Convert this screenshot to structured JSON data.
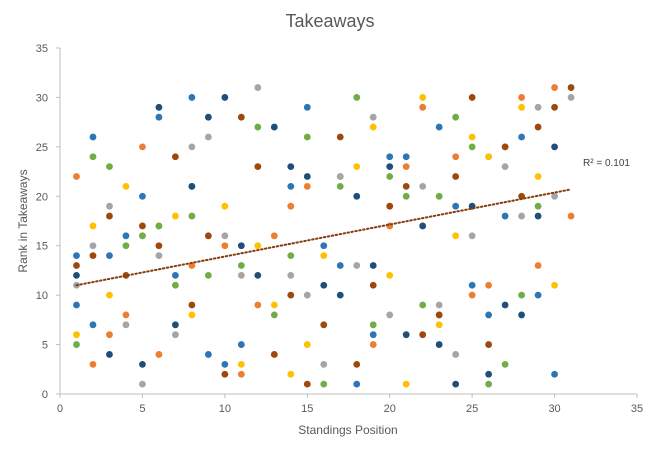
{
  "chart_data": {
    "type": "scatter",
    "title": "Takeaways",
    "xlabel": "Standings Position",
    "ylabel": "Rank in Takeaways",
    "xlim": [
      0,
      35
    ],
    "ylim": [
      0,
      35
    ],
    "xticks": [
      0,
      5,
      10,
      15,
      20,
      25,
      30,
      35
    ],
    "yticks": [
      0,
      5,
      10,
      15,
      20,
      25,
      30,
      35
    ],
    "grid": false,
    "legend": "none",
    "series": [
      {
        "color": "#2E75B6",
        "points": [
          [
            1,
            14
          ],
          [
            1,
            9
          ],
          [
            2,
            26
          ],
          [
            2,
            7
          ],
          [
            3,
            14
          ],
          [
            4,
            16
          ],
          [
            5,
            20
          ],
          [
            6,
            28
          ],
          [
            7,
            12
          ],
          [
            8,
            30
          ],
          [
            8,
            21
          ],
          [
            9,
            4
          ],
          [
            10,
            3
          ],
          [
            11,
            5
          ],
          [
            14,
            21
          ],
          [
            15,
            29
          ],
          [
            16,
            15
          ],
          [
            17,
            13
          ],
          [
            18,
            1
          ],
          [
            19,
            6
          ],
          [
            20,
            24
          ],
          [
            21,
            24
          ],
          [
            23,
            27
          ],
          [
            24,
            19
          ],
          [
            25,
            11
          ],
          [
            26,
            8
          ],
          [
            27,
            18
          ],
          [
            28,
            26
          ],
          [
            29,
            10
          ],
          [
            30,
            2
          ]
        ]
      },
      {
        "color": "#1F4E79",
        "points": [
          [
            1,
            12
          ],
          [
            3,
            4
          ],
          [
            5,
            3
          ],
          [
            6,
            29
          ],
          [
            7,
            7
          ],
          [
            8,
            21
          ],
          [
            9,
            28
          ],
          [
            10,
            30
          ],
          [
            11,
            15
          ],
          [
            12,
            12
          ],
          [
            13,
            27
          ],
          [
            14,
            23
          ],
          [
            15,
            22
          ],
          [
            16,
            11
          ],
          [
            17,
            10
          ],
          [
            18,
            20
          ],
          [
            19,
            13
          ],
          [
            20,
            23
          ],
          [
            21,
            6
          ],
          [
            22,
            17
          ],
          [
            23,
            5
          ],
          [
            24,
            1
          ],
          [
            25,
            19
          ],
          [
            26,
            2
          ],
          [
            27,
            9
          ],
          [
            28,
            8
          ],
          [
            29,
            18
          ],
          [
            30,
            25
          ]
        ]
      },
      {
        "color": "#ED7D31",
        "points": [
          [
            1,
            22
          ],
          [
            2,
            3
          ],
          [
            3,
            6
          ],
          [
            4,
            8
          ],
          [
            5,
            25
          ],
          [
            6,
            4
          ],
          [
            8,
            13
          ],
          [
            10,
            15
          ],
          [
            11,
            2
          ],
          [
            12,
            9
          ],
          [
            13,
            16
          ],
          [
            14,
            19
          ],
          [
            15,
            21
          ],
          [
            17,
            22
          ],
          [
            19,
            5
          ],
          [
            20,
            17
          ],
          [
            21,
            23
          ],
          [
            22,
            29
          ],
          [
            23,
            8
          ],
          [
            24,
            24
          ],
          [
            25,
            10
          ],
          [
            26,
            11
          ],
          [
            27,
            25
          ],
          [
            28,
            30
          ],
          [
            29,
            13
          ],
          [
            30,
            31
          ],
          [
            31,
            18
          ]
        ]
      },
      {
        "color": "#A5A5A5",
        "points": [
          [
            1,
            11
          ],
          [
            2,
            15
          ],
          [
            3,
            19
          ],
          [
            4,
            7
          ],
          [
            5,
            1
          ],
          [
            6,
            14
          ],
          [
            7,
            6
          ],
          [
            8,
            25
          ],
          [
            9,
            26
          ],
          [
            10,
            16
          ],
          [
            11,
            12
          ],
          [
            12,
            31
          ],
          [
            14,
            12
          ],
          [
            15,
            10
          ],
          [
            16,
            3
          ],
          [
            17,
            22
          ],
          [
            18,
            13
          ],
          [
            19,
            28
          ],
          [
            20,
            8
          ],
          [
            22,
            21
          ],
          [
            23,
            9
          ],
          [
            24,
            4
          ],
          [
            25,
            16
          ],
          [
            26,
            24
          ],
          [
            27,
            23
          ],
          [
            28,
            18
          ],
          [
            29,
            29
          ],
          [
            30,
            20
          ],
          [
            31,
            30
          ]
        ]
      },
      {
        "color": "#FFC000",
        "points": [
          [
            1,
            6
          ],
          [
            2,
            17
          ],
          [
            3,
            10
          ],
          [
            4,
            21
          ],
          [
            5,
            16
          ],
          [
            6,
            17
          ],
          [
            7,
            18
          ],
          [
            8,
            8
          ],
          [
            10,
            19
          ],
          [
            11,
            3
          ],
          [
            12,
            15
          ],
          [
            13,
            9
          ],
          [
            14,
            2
          ],
          [
            15,
            5
          ],
          [
            16,
            14
          ],
          [
            18,
            23
          ],
          [
            19,
            27
          ],
          [
            20,
            12
          ],
          [
            21,
            1
          ],
          [
            22,
            30
          ],
          [
            23,
            7
          ],
          [
            24,
            16
          ],
          [
            25,
            26
          ],
          [
            26,
            24
          ],
          [
            28,
            29
          ],
          [
            29,
            22
          ],
          [
            30,
            11
          ]
        ]
      },
      {
        "color": "#70AD47",
        "points": [
          [
            1,
            5
          ],
          [
            2,
            24
          ],
          [
            3,
            23
          ],
          [
            4,
            15
          ],
          [
            5,
            16
          ],
          [
            6,
            17
          ],
          [
            7,
            11
          ],
          [
            8,
            18
          ],
          [
            9,
            12
          ],
          [
            11,
            13
          ],
          [
            12,
            27
          ],
          [
            13,
            8
          ],
          [
            14,
            14
          ],
          [
            15,
            26
          ],
          [
            16,
            1
          ],
          [
            17,
            21
          ],
          [
            18,
            30
          ],
          [
            19,
            7
          ],
          [
            20,
            22
          ],
          [
            21,
            20
          ],
          [
            22,
            9
          ],
          [
            23,
            20
          ],
          [
            24,
            28
          ],
          [
            25,
            25
          ],
          [
            26,
            1
          ],
          [
            27,
            3
          ],
          [
            28,
            10
          ],
          [
            29,
            19
          ]
        ]
      },
      {
        "color": "#9E480E",
        "points": [
          [
            1,
            13
          ],
          [
            2,
            14
          ],
          [
            3,
            18
          ],
          [
            4,
            12
          ],
          [
            5,
            17
          ],
          [
            6,
            15
          ],
          [
            7,
            24
          ],
          [
            8,
            9
          ],
          [
            9,
            16
          ],
          [
            10,
            2
          ],
          [
            11,
            28
          ],
          [
            12,
            23
          ],
          [
            13,
            4
          ],
          [
            14,
            10
          ],
          [
            15,
            1
          ],
          [
            16,
            7
          ],
          [
            17,
            26
          ],
          [
            18,
            3
          ],
          [
            19,
            11
          ],
          [
            20,
            19
          ],
          [
            21,
            21
          ],
          [
            22,
            6
          ],
          [
            23,
            8
          ],
          [
            24,
            22
          ],
          [
            25,
            30
          ],
          [
            26,
            5
          ],
          [
            27,
            25
          ],
          [
            28,
            20
          ],
          [
            29,
            27
          ],
          [
            30,
            29
          ],
          [
            31,
            31
          ]
        ]
      }
    ],
    "trendline": {
      "style": "dotted",
      "color": "#843C0C",
      "from": [
        1,
        11.0
      ],
      "to": [
        31,
        20.7
      ],
      "label": "R² = 0.101"
    }
  }
}
